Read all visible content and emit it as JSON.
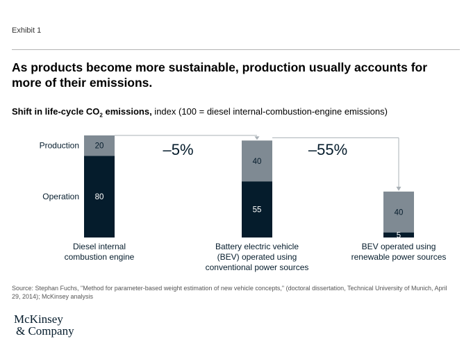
{
  "exhibit": "Exhibit 1",
  "title": "As products become more sustainable, production usually accounts for more of their emissions.",
  "subtitle": {
    "bold_part1": "Shift in life-cycle CO",
    "bold_sub": "2",
    "bold_part2": " emissions,",
    "regular": " index (100 = diesel internal-combustion-engine emissions)"
  },
  "chart_data": {
    "type": "bar",
    "stacked": true,
    "categories": [
      [
        "Diesel internal",
        "combustion engine"
      ],
      [
        "Battery electric vehicle",
        "(BEV) operated using",
        "conventional power sources"
      ],
      [
        "BEV operated using",
        "renewable power sources"
      ]
    ],
    "series": [
      {
        "name": "Operation",
        "values": [
          80,
          55,
          5
        ],
        "color": "#051c2c"
      },
      {
        "name": "Production",
        "values": [
          20,
          40,
          40
        ],
        "color": "#7f8a93"
      }
    ],
    "annotations": [
      {
        "text": "–5%",
        "from": 0,
        "to": 1
      },
      {
        "text": "–55%",
        "from": 1,
        "to": 2
      }
    ],
    "ylim": [
      0,
      100
    ],
    "legend": "left, beside first bar"
  },
  "source": "Source: Stephan Fuchs, \"Method for parameter-based weight estimation of new vehicle concepts,\" (doctoral dissertation, Technical University of Munich, April 29, 2014); McKinsey analysis",
  "logo": {
    "line1": "McKinsey",
    "line2": "& Company"
  }
}
